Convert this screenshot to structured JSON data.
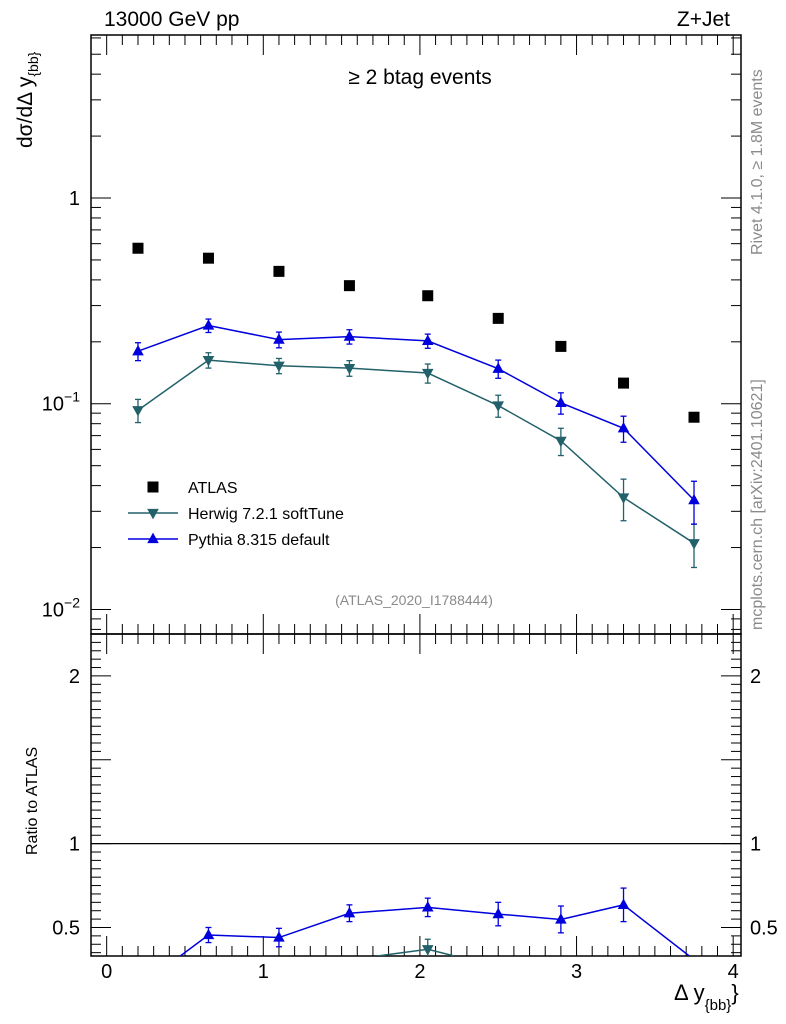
{
  "header": {
    "energy_label": "13000 GeV pp",
    "process_label": "Z+Jet",
    "plot_title": "≥ 2 btag events",
    "analysis_id": "(ATLAS_2020_I1788444)",
    "rivet_label": "Rivet 4.1.0, ≥ 1.8M events",
    "mcplots_label": "mcplots.cern.ch [arXiv:2401.10621]"
  },
  "chart_data": {
    "type": "scatter",
    "title": "≥ 2 btag events",
    "xlabel": "Δ y_{bb}",
    "ylabel_main": "dσ/dΔ y_{bb}",
    "ylabel_ratio": "Ratio to ATLAS",
    "xlim": [
      -0.1,
      4.05
    ],
    "ylim_main": [
      0.0076,
      6.2
    ],
    "yscale_main": "log",
    "ylim_ratio": [
      0.33,
      2.25
    ],
    "x": [
      0.2,
      0.65,
      1.1,
      1.55,
      2.05,
      2.5,
      2.9,
      3.3,
      3.75
    ],
    "x_ticks": [
      "0",
      "1",
      "2",
      "3",
      "4"
    ],
    "y_ticks_main": [
      {
        "v": 1,
        "base": "1",
        "exp": ""
      },
      {
        "v": 0.1,
        "base": "10",
        "exp": "−1"
      },
      {
        "v": 0.01,
        "base": "10",
        "exp": "−2"
      }
    ],
    "y_ticks_ratio": [
      "2",
      "1",
      "0.5"
    ],
    "series": [
      {
        "name": "ATLAS",
        "color": "#000000",
        "marker": "square",
        "values": [
          0.57,
          0.51,
          0.44,
          0.375,
          0.335,
          0.26,
          0.19,
          0.126,
          0.086
        ]
      },
      {
        "name": "Herwig 7.2.1 softTune",
        "color": "#22616a",
        "marker": "triangle-down",
        "values": [
          0.093,
          0.163,
          0.153,
          0.149,
          0.141,
          0.098,
          0.066,
          0.035,
          0.021
        ],
        "err_up": [
          0.012,
          0.014,
          0.013,
          0.013,
          0.015,
          0.012,
          0.01,
          0.008,
          0.005
        ],
        "err_down": [
          0.012,
          0.014,
          0.013,
          0.013,
          0.015,
          0.012,
          0.01,
          0.008,
          0.005
        ]
      },
      {
        "name": "Pythia 8.315 default",
        "color": "#0000dd",
        "marker": "triangle-up",
        "values": [
          0.18,
          0.24,
          0.205,
          0.212,
          0.202,
          0.148,
          0.101,
          0.076,
          0.034
        ],
        "err_up": [
          0.018,
          0.018,
          0.018,
          0.017,
          0.016,
          0.015,
          0.012,
          0.011,
          0.008
        ],
        "err_down": [
          0.018,
          0.018,
          0.018,
          0.017,
          0.016,
          0.015,
          0.012,
          0.011,
          0.008
        ]
      }
    ],
    "ratio": {
      "reference": 1,
      "pythia": {
        "x": [
          0.65,
          1.1,
          1.55,
          2.05,
          2.5,
          2.9,
          3.3
        ],
        "values": [
          0.455,
          0.44,
          0.585,
          0.62,
          0.58,
          0.548,
          0.635
        ],
        "err": [
          0.045,
          0.055,
          0.05,
          0.055,
          0.07,
          0.08,
          0.1
        ]
      },
      "pythia_line_in": {
        "x": 0.47,
        "value": 0.33
      },
      "pythia_line_out": {
        "x": 3.72,
        "value": 0.33
      },
      "herwig": {
        "x": [
          2.05
        ],
        "values": [
          0.37
        ],
        "err": [
          0.06
        ]
      },
      "herwig_line_in": {
        "x": 1.73,
        "value": 0.33
      },
      "herwig_line_out": {
        "x": 2.22,
        "value": 0.33
      }
    }
  }
}
